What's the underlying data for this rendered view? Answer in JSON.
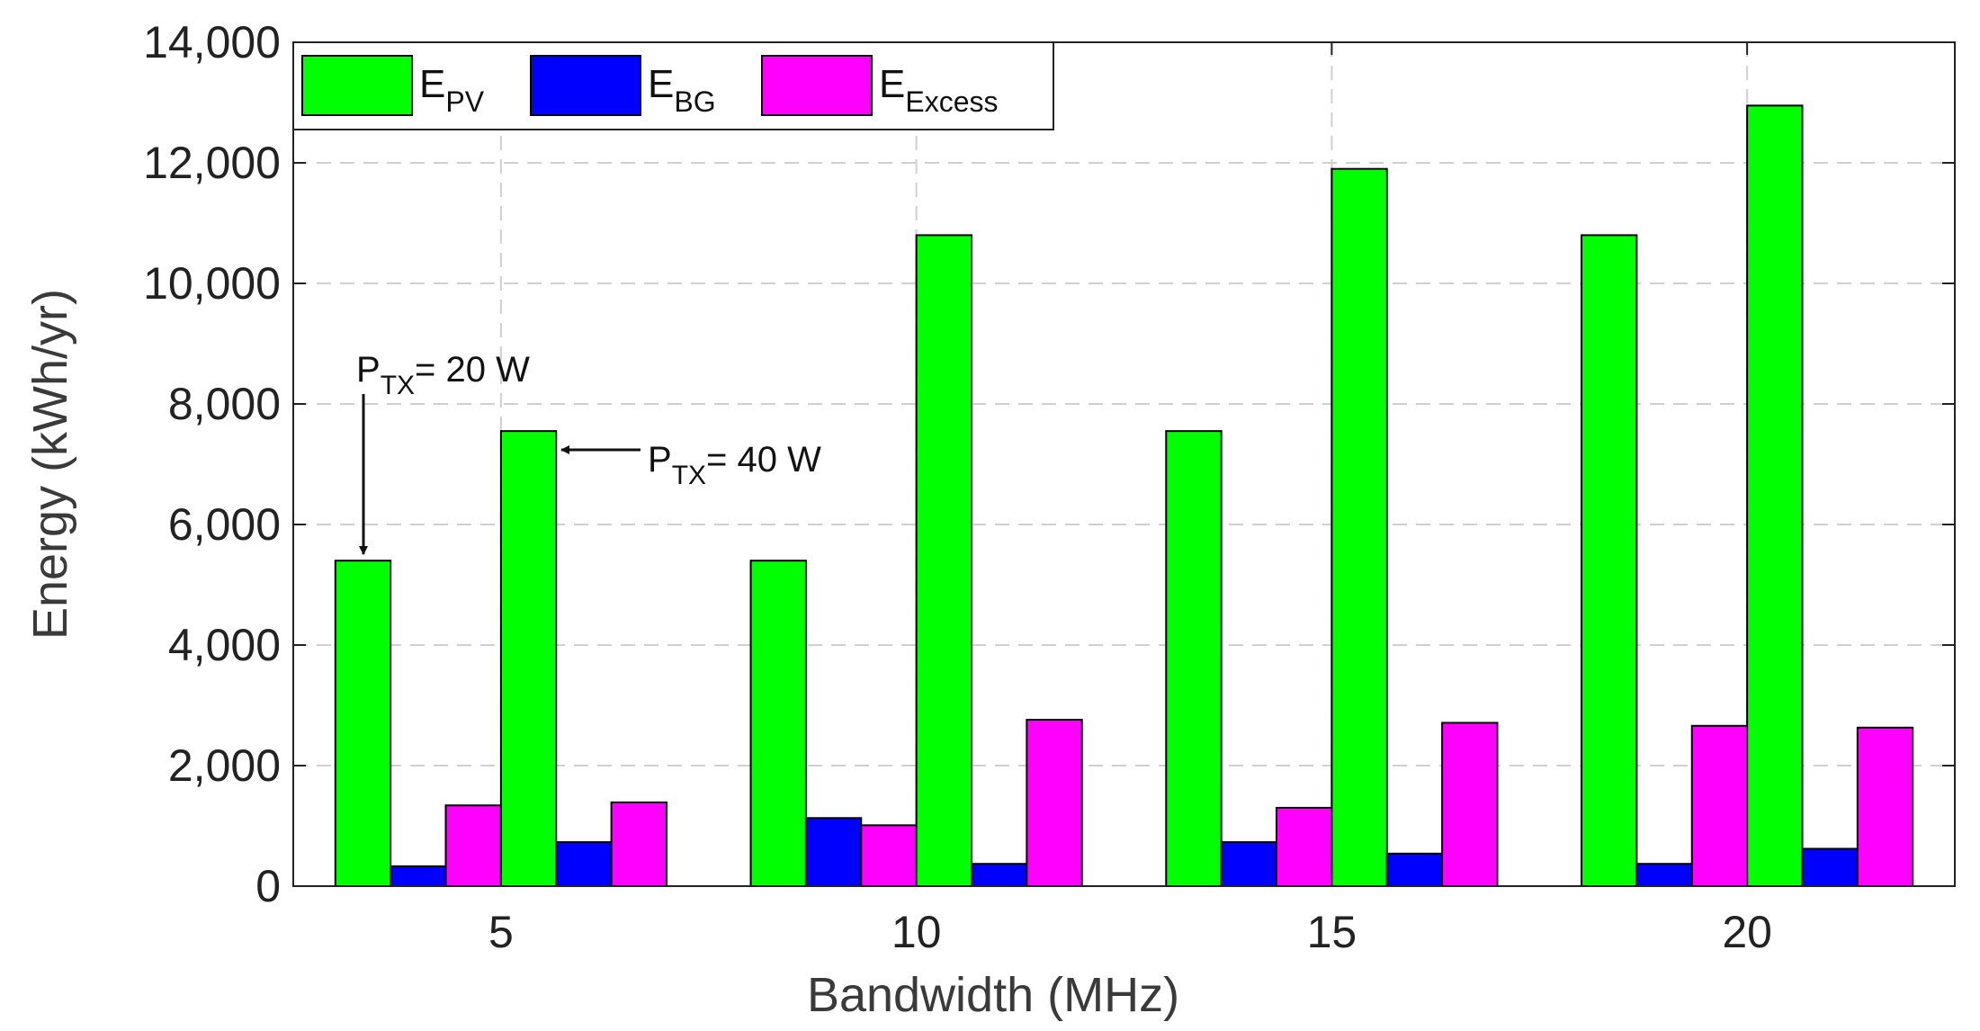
{
  "chart_data": {
    "type": "bar",
    "title": "",
    "xlabel": "Bandwidth (MHz)",
    "ylabel": "Energy (kWh/yr)",
    "ylim": [
      0,
      14000
    ],
    "yticks": [
      0,
      2000,
      4000,
      6000,
      8000,
      10000,
      12000,
      14000
    ],
    "ytick_labels": [
      "0",
      "2,000",
      "4,000",
      "6,000",
      "8,000",
      "10,000",
      "12,000",
      "14,000"
    ],
    "categories": [
      "5",
      "10",
      "15",
      "20"
    ],
    "groups_per_category": [
      {
        "name": "P_TX = 20 W"
      },
      {
        "name": "P_TX = 40 W"
      }
    ],
    "series": [
      {
        "name": "E_PV",
        "label_main": "E",
        "label_sub": "PV",
        "color": "#00ff00",
        "values_20W": [
          5400,
          5400,
          7550,
          10800
        ],
        "values_40W": [
          7550,
          10800,
          11900,
          12950
        ]
      },
      {
        "name": "E_BG",
        "label_main": "E",
        "label_sub": "BG",
        "color": "#0000ff",
        "values_20W": [
          330,
          1130,
          730,
          370
        ],
        "values_40W": [
          730,
          370,
          540,
          620
        ]
      },
      {
        "name": "E_Excess",
        "label_main": "E",
        "label_sub": "Excess",
        "color": "#ff00ff",
        "values_20W": [
          1340,
          1010,
          1300,
          2660
        ],
        "values_40W": [
          1390,
          2760,
          2710,
          2630
        ]
      }
    ],
    "legend_position": "top-left",
    "grid": true,
    "annotations": [
      {
        "id": "p20",
        "main": "P",
        "sub": "TX",
        "text": "= 20 W",
        "points_to": {
          "category": "5",
          "group": "P_TX = 20 W",
          "series": "E_PV"
        }
      },
      {
        "id": "p40",
        "main": "P",
        "sub": "TX",
        "text": "= 40 W",
        "points_to": {
          "category": "5",
          "group": "P_TX = 40 W",
          "series": "E_PV"
        }
      }
    ]
  }
}
